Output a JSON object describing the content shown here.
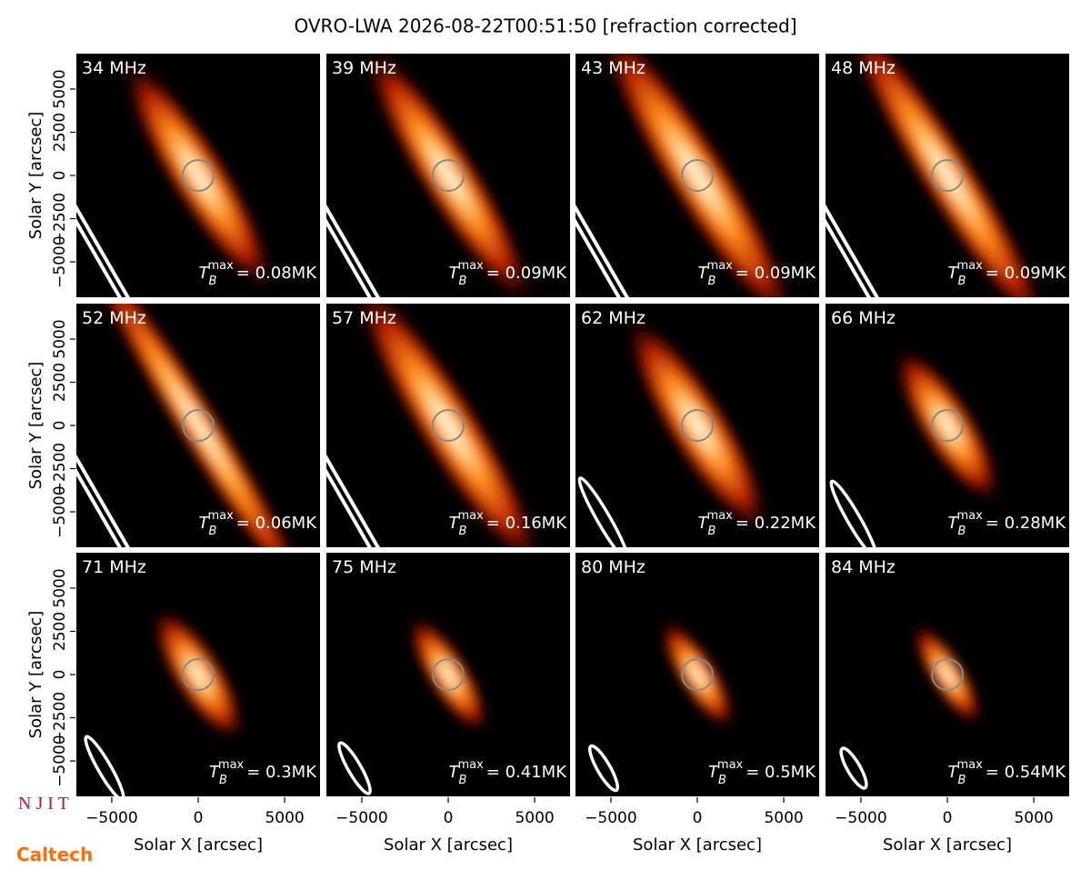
{
  "title": "OVRO-LWA 2026-08-22T00:51:50 [refraction corrected]",
  "logos": {
    "njit": "N J I T",
    "caltech": "Caltech"
  },
  "axes": {
    "xlabel": "Solar X [arcsec]",
    "ylabel": "Solar Y [arcsec]",
    "xlim": [
      -7100,
      7100
    ],
    "ylim": [
      -7100,
      7100
    ],
    "xticks": [
      {
        "value": -5000,
        "label": "−5000"
      },
      0,
      5000
    ],
    "yticks": [
      {
        "value": -5000,
        "label": "−5000"
      },
      {
        "value": -2500,
        "label": "−2500"
      },
      0,
      2500,
      5000
    ]
  },
  "annotation_symbol": {
    "base": "T",
    "sub": "B",
    "sup": "max"
  },
  "chart_data": [
    {
      "type": "image",
      "title": "34 MHz",
      "annotation": "= 0.08MK"
    },
    {
      "type": "image",
      "title": "39 MHz",
      "annotation": "= 0.09MK"
    },
    {
      "type": "image",
      "title": "43 MHz",
      "annotation": "= 0.09MK"
    },
    {
      "type": "image",
      "title": "48 MHz",
      "annotation": "= 0.09MK"
    },
    {
      "type": "image",
      "title": "52 MHz",
      "annotation": "= 0.06MK"
    },
    {
      "type": "image",
      "title": "57 MHz",
      "annotation": "= 0.16MK"
    },
    {
      "type": "image",
      "title": "62 MHz",
      "annotation": "= 0.22MK"
    },
    {
      "type": "image",
      "title": "66 MHz",
      "annotation": "= 0.28MK"
    },
    {
      "type": "image",
      "title": "71 MHz",
      "annotation": "= 0.3MK"
    },
    {
      "type": "image",
      "title": "75 MHz",
      "annotation": "= 0.41MK"
    },
    {
      "type": "image",
      "title": "80 MHz",
      "annotation": "= 0.5MK"
    },
    {
      "type": "image",
      "title": "84 MHz",
      "annotation": "= 0.54MK"
    }
  ]
}
